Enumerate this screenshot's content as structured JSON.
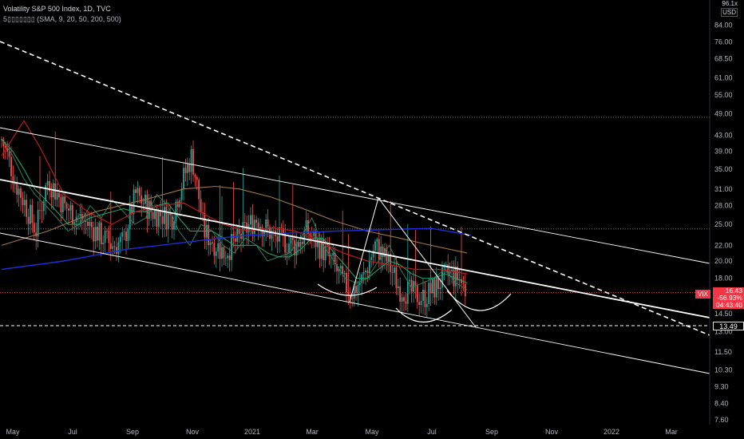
{
  "header": {
    "title": "Volatility S&P 500 Index, 1D, TVC",
    "indicator": "5▯▯▯▯▯▯▯ (SMA, 9, 20, 50, 200, 500)"
  },
  "axis": {
    "unit_top": "96.1x",
    "currency": "USD"
  },
  "badges": {
    "symbol": "VIX",
    "price": "16.43",
    "change": "-56.93%",
    "countdown": "04:43:40",
    "level": "13.49"
  },
  "colors": {
    "background": "#000000",
    "up": "#26a69a",
    "down": "#ef5350",
    "sma9": "#2e7d5b",
    "sma20": "#1faa6e",
    "sma50": "#b71c1c",
    "sma200": "#a0784a",
    "sma500": "#1e2fd6",
    "trendlines": "#ffffff",
    "grid_dotted": "#9e9e9e",
    "price_line": "#f23645"
  },
  "chart_data": {
    "type": "candlestick",
    "symbol": "VIX",
    "title": "Volatility S&P 500 Index, 1D, TVC",
    "y_scale": "log",
    "ylim": [
      7.0,
      96.1
    ],
    "y_ticks": [
      "84.00",
      "76.00",
      "68.50",
      "61.00",
      "55.00",
      "49.00",
      "43.00",
      "39.00",
      "35.00",
      "31.00",
      "28.00",
      "25.00",
      "22.00",
      "20.00",
      "18.00",
      "16.00",
      "14.50",
      "13.00",
      "11.50",
      "10.30",
      "9.30",
      "8.40",
      "7.60"
    ],
    "x_ticks": [
      "May",
      "Jul",
      "Sep",
      "Nov",
      "2021",
      "Mar",
      "May",
      "Jul",
      "Sep",
      "Nov",
      "2022",
      "Mar"
    ],
    "last_price": 16.43,
    "horizontal_levels": [
      48.0,
      24.3,
      16.5,
      13.49
    ],
    "series": [
      {
        "name": "SMA 9",
        "values": [
          42,
          38,
          33,
          30,
          28,
          26,
          24,
          25,
          28,
          26,
          29,
          27,
          25,
          26,
          30,
          28,
          24,
          22,
          25,
          24,
          22,
          21,
          23,
          22,
          20,
          20.5,
          21,
          23,
          26,
          22,
          20,
          18,
          17.5,
          18,
          20,
          22,
          19,
          17,
          17.5,
          18,
          19,
          17.5,
          16.8
        ]
      },
      {
        "name": "SMA 20",
        "values": [
          42,
          39,
          35,
          31,
          29,
          27,
          25,
          25,
          26,
          26.5,
          27,
          27.5,
          27,
          27,
          28,
          28.5,
          26,
          24,
          24,
          24,
          23,
          22,
          22,
          22,
          21,
          20.5,
          20.5,
          21.5,
          23,
          23,
          21,
          19.5,
          18,
          18,
          19,
          20,
          19.5,
          18.5,
          18,
          18,
          18.5,
          18,
          17.5
        ]
      }
    ]
  }
}
